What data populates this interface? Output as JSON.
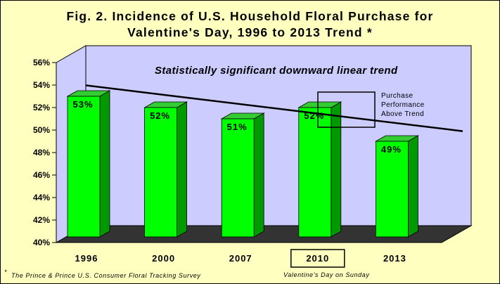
{
  "title": {
    "line1": "Fig. 2.  Incidence of U.S. Household Floral Purchase for",
    "line2": "Valentine's Day, 1996 to 2013 Trend *"
  },
  "annotation": "Statistically significant downward linear trend",
  "callout": {
    "line1": "Purchase",
    "line2": "Performance",
    "line3": "Above Trend"
  },
  "footnote_source": "The Prince & Prince U.S. Consumer Floral Tracking Survey",
  "footnote_mark": "*",
  "footnote_sunday": "Valentine's Day on Sunday",
  "colors": {
    "background": "#ffffc0",
    "plot_wall": "#ccccff",
    "floor": "#333333",
    "bar_front": "#00ff00",
    "bar_side": "#009900",
    "bar_top": "#33cc33",
    "trend_line": "#000000"
  },
  "chart_data": {
    "type": "bar",
    "categories": [
      "1996",
      "2000",
      "2007",
      "2010",
      "2013"
    ],
    "values": [
      53,
      52,
      51,
      52,
      49
    ],
    "value_labels": [
      "53%",
      "52%",
      "51%",
      "52%",
      "49%"
    ],
    "highlighted_category": "2010",
    "ylim": [
      40,
      56
    ],
    "y_ticks": [
      "40%",
      "42%",
      "44%",
      "46%",
      "48%",
      "50%",
      "52%",
      "54%",
      "56%"
    ],
    "trendline": {
      "start": 54.1,
      "end": 48.9
    },
    "grid": false,
    "legend": "none",
    "style": "3d"
  }
}
